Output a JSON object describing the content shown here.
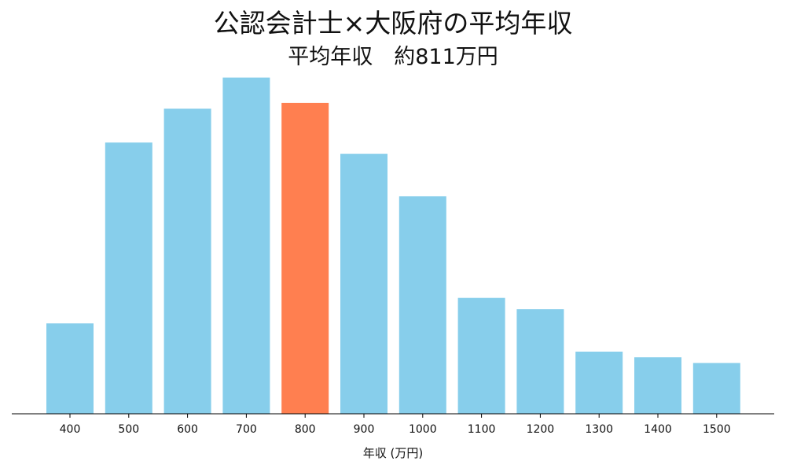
{
  "chart_data": {
    "type": "bar",
    "title": "公認会計士×大阪府の平均年収",
    "subtitle": "平均年収　約811万円",
    "xlabel": "年収 (万円)",
    "ylabel": "",
    "categories": [
      "400",
      "500",
      "600",
      "700",
      "800",
      "900",
      "1000",
      "1100",
      "1200",
      "1300",
      "1400",
      "1500"
    ],
    "values": [
      16,
      48,
      54,
      59.5,
      55,
      46,
      38.5,
      20.5,
      18.5,
      11,
      10,
      9
    ],
    "ylim": [
      0,
      60
    ],
    "highlight_category": "800",
    "colors": {
      "bar": "#87CEEB",
      "highlight": "#FF7F50",
      "axis": "#000000"
    },
    "grid": false,
    "legend": "none"
  }
}
